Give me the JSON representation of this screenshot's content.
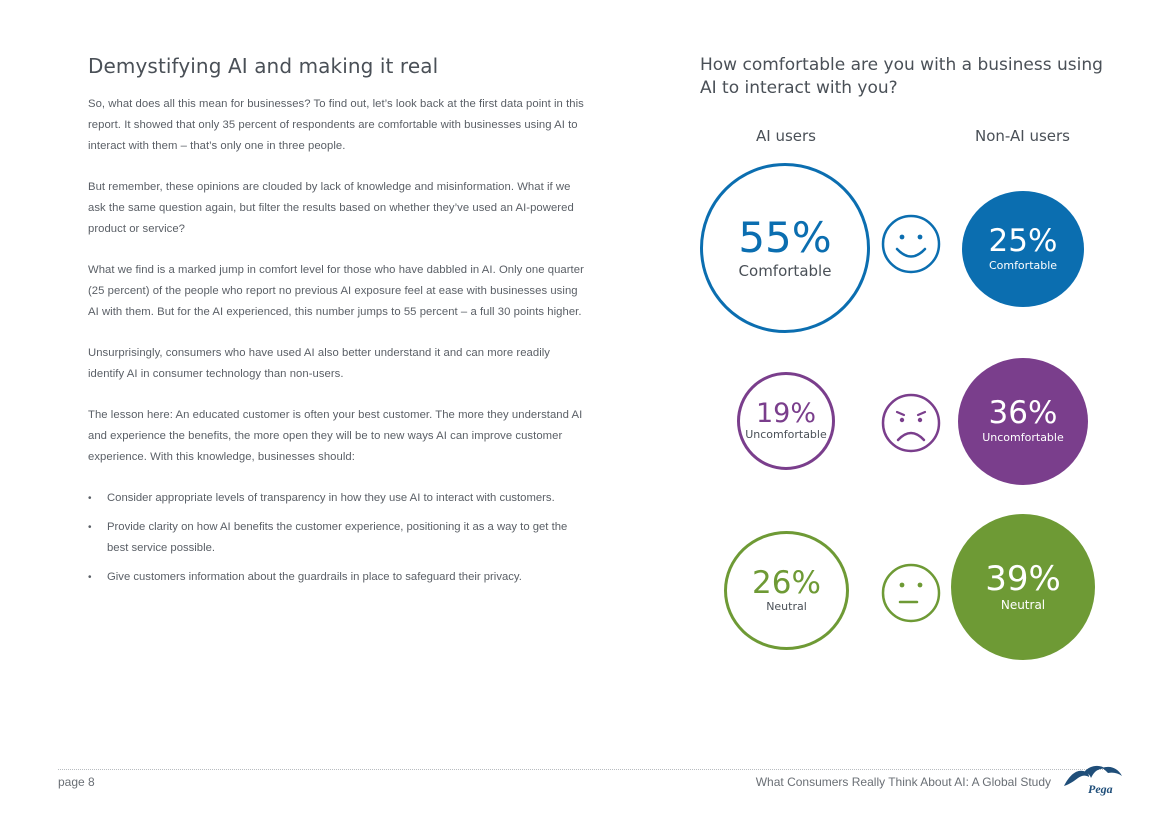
{
  "left": {
    "heading": "Demystifying AI and making it real",
    "paragraphs": [
      "So, what does all this mean for businesses? To find out, let’s look back at the first data point in this report. It showed that only 35 percent of respondents are comfortable with businesses using AI to interact with them – that’s only one in three people.",
      "But remember, these opinions are clouded by lack of knowledge and misinformation. What if we ask the same question again, but filter the results based on whether they’ve used an AI-powered product or service?",
      "What we find is a marked jump in comfort level for those who have dabbled in AI. Only one quarter (25 percent) of the people who report no previous AI exposure feel at ease with businesses using AI with them. But for the AI experienced, this number jumps to 55 percent – a full 30 points higher.",
      "Unsurprisingly, consumers who have used AI also better understand it and can more readily identify AI in consumer technology than non-users.",
      "The lesson here: An educated customer is often your best customer. The more they understand AI and experience the benefits, the more open they will be to new ways AI can improve customer experience. With this knowledge, businesses should:"
    ],
    "bullet_glyph": "•",
    "bullets": [
      "Consider appropriate levels of transparency in how they use AI to interact with customers.",
      "Provide clarity on how AI benefits the customer experience, positioning it as a way to get the best service possible.",
      "Give customers information about the guardrails in place to safeguard their privacy."
    ]
  },
  "chart": {
    "title": "How comfortable are you with a business using AI to interact with you?",
    "col_ai": "AI users",
    "col_non_ai": "Non-AI users"
  },
  "chart_data": {
    "type": "bubble",
    "title": "How comfortable are you with a business using AI to interact with you?",
    "series": [
      {
        "name": "AI users",
        "style": "outline"
      },
      {
        "name": "Non-AI users",
        "style": "filled"
      }
    ],
    "rows": [
      {
        "category": "Comfortable",
        "color": "#0b6eb0",
        "ai_users": 55,
        "non_ai_users": 25,
        "ai_text": "55%",
        "non_ai_text": "25%",
        "face": "happy"
      },
      {
        "category": "Uncomfortable",
        "color": "#7a3e8c",
        "ai_users": 19,
        "non_ai_users": 36,
        "ai_text": "19%",
        "non_ai_text": "36%",
        "face": "sad"
      },
      {
        "category": "Neutral",
        "color": "#6e9a35",
        "ai_users": 26,
        "non_ai_users": 39,
        "ai_text": "26%",
        "non_ai_text": "39%",
        "face": "neutral"
      }
    ]
  },
  "footer": {
    "page": "page 8",
    "title": "What Consumers Really Think About AI: A Global Study",
    "logo_text": "Pega"
  }
}
